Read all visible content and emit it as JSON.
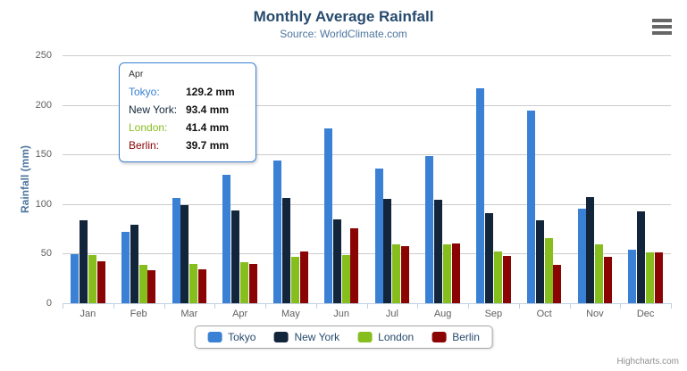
{
  "header": {
    "title": "Monthly Average Rainfall",
    "subtitle": "Source: WorldClimate.com"
  },
  "yAxis": {
    "title": "Rainfall (mm)"
  },
  "chart_data": {
    "type": "bar",
    "title": "Monthly Average Rainfall",
    "subtitle": "Source: WorldClimate.com",
    "categories": [
      "Jan",
      "Feb",
      "Mar",
      "Apr",
      "May",
      "Jun",
      "Jul",
      "Aug",
      "Sep",
      "Oct",
      "Nov",
      "Dec"
    ],
    "series": [
      {
        "name": "Tokyo",
        "color": "#3a81d5",
        "values": [
          49.9,
          71.5,
          106.4,
          129.2,
          144.0,
          176.0,
          135.6,
          148.5,
          216.4,
          194.1,
          95.6,
          54.4
        ]
      },
      {
        "name": "New York",
        "color": "#12253a",
        "values": [
          83.6,
          78.8,
          98.5,
          93.4,
          106.0,
          84.5,
          105.0,
          104.3,
          91.2,
          83.5,
          106.6,
          92.3
        ]
      },
      {
        "name": "London",
        "color": "#86be1e",
        "values": [
          48.9,
          38.8,
          39.3,
          41.4,
          47.0,
          48.3,
          59.0,
          59.6,
          52.4,
          65.2,
          59.3,
          51.2
        ]
      },
      {
        "name": "Berlin",
        "color": "#8b0404",
        "values": [
          42.4,
          33.2,
          34.5,
          39.7,
          52.6,
          75.5,
          57.4,
          60.4,
          47.6,
          39.1,
          46.8,
          51.1
        ]
      }
    ],
    "xlabel": "",
    "ylabel": "Rainfall (mm)",
    "ylim": [
      0,
      250
    ],
    "yticks": [
      0,
      50,
      100,
      150,
      200,
      250
    ],
    "value_suffix": "mm",
    "legend_position": "bottom-center",
    "grid": "horizontal"
  },
  "tooltip": {
    "header": "Apr",
    "rows": [
      {
        "label": "Tokyo:",
        "value": "129.2 mm",
        "color": "#3a81d5"
      },
      {
        "label": "New York:",
        "value": "93.4 mm",
        "color": "#12253a"
      },
      {
        "label": "London:",
        "value": "41.4 mm",
        "color": "#86be1e"
      },
      {
        "label": "Berlin:",
        "value": "39.7 mm",
        "color": "#8b0404"
      }
    ]
  },
  "legend": {
    "items": [
      "Tokyo",
      "New York",
      "London",
      "Berlin"
    ]
  },
  "credits": {
    "text": "Highcharts.com"
  },
  "colors": {
    "title": "#274b6d",
    "subtitle": "#4d759e",
    "axis_label": "#606060",
    "grid_line": "#cccccc",
    "axis_line": "#c0d0e0"
  }
}
